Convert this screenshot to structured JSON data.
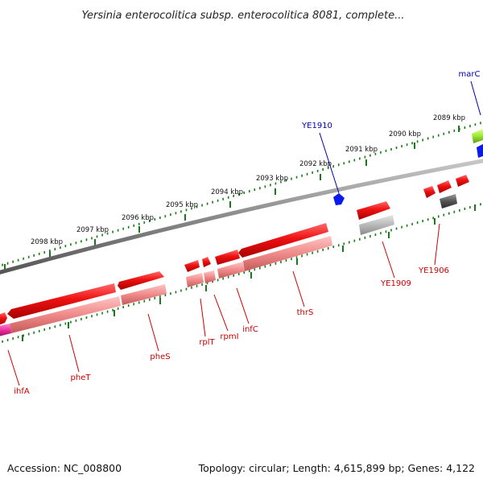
{
  "title": "Yersinia enterocolitica subsp. enterocolitica 8081, complete...",
  "footer": {
    "accession": "Accession: NC_008800",
    "summary": "Topology: circular; Length: 4,615,899 bp; Genes: 4,122"
  },
  "ruler": {
    "unit_label": "kbp",
    "ticks": [
      {
        "label": "2089 kbp"
      },
      {
        "label": "2090 kbp"
      },
      {
        "label": "2091 kbp"
      },
      {
        "label": "2092 kbp"
      },
      {
        "label": "2093 kbp"
      },
      {
        "label": "2094 kbp"
      },
      {
        "label": "2095 kbp"
      },
      {
        "label": "2096 kbp"
      },
      {
        "label": "2097 kbp"
      },
      {
        "label": "2098 kbp"
      }
    ]
  },
  "colors": {
    "backbone": "#8a8a8a",
    "tick": "#1a7a1a",
    "gene_red": "#ee1111",
    "cds_pink": "#f08a8a",
    "other_gray": "#b8b8b8",
    "dark_gray": "#555555",
    "label_red": "#cc0000",
    "label_blue": "#0000aa",
    "blue_feature": "#0a1aee",
    "green_feature": "#9ee830",
    "magenta_feature": "#ee2ea0"
  },
  "genes": [
    {
      "name": "marC",
      "color": "#0000aa"
    },
    {
      "name": "YE1910",
      "color": "#0000aa"
    },
    {
      "name": "YE1909",
      "color": "#cc0000"
    },
    {
      "name": "YE1906",
      "color": "#cc0000"
    },
    {
      "name": "thrS",
      "color": "#cc0000"
    },
    {
      "name": "infC",
      "color": "#cc0000"
    },
    {
      "name": "rpmI",
      "color": "#cc0000"
    },
    {
      "name": "rplT",
      "color": "#cc0000"
    },
    {
      "name": "pheS",
      "color": "#cc0000"
    },
    {
      "name": "pheT",
      "color": "#cc0000"
    },
    {
      "name": "ihfA",
      "color": "#cc0000"
    }
  ]
}
